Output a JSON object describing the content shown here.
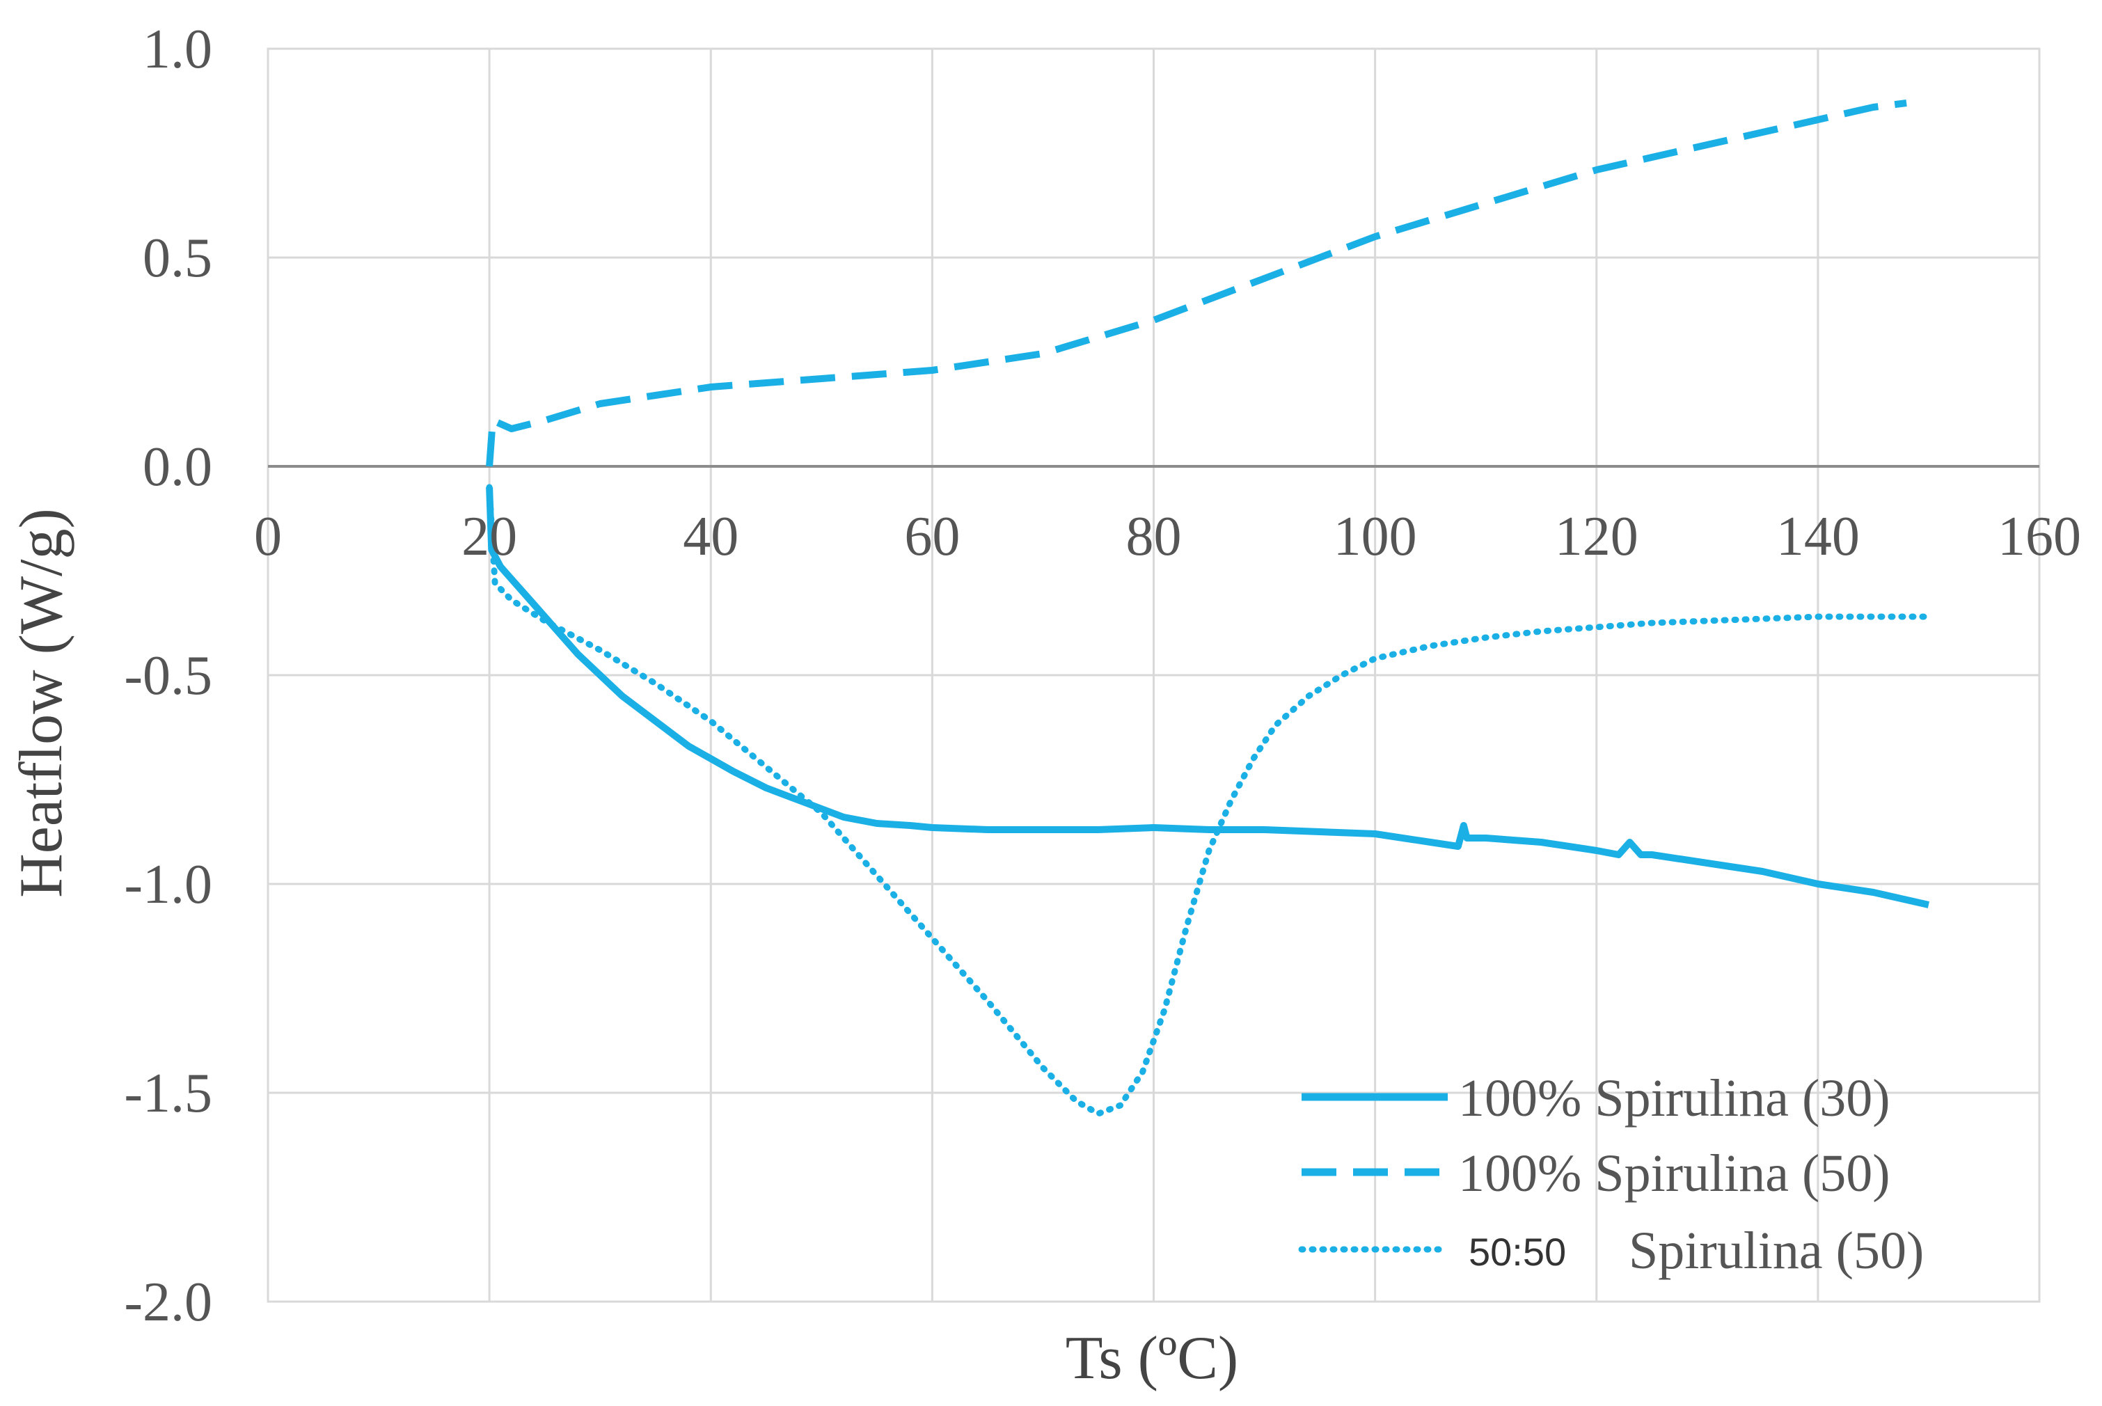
{
  "chart_data": {
    "type": "line",
    "title": "",
    "xlabel": "Ts (ºC)",
    "ylabel": "Heatflow (W/g)",
    "xlim": [
      0,
      160
    ],
    "ylim": [
      -2.0,
      1.0
    ],
    "grid": true,
    "x_ticks": [
      0,
      20,
      40,
      60,
      80,
      100,
      120,
      140,
      160
    ],
    "x_tick_labels": [
      "0",
      "20",
      "40",
      "60",
      "80",
      "100",
      "120",
      "140",
      "160"
    ],
    "y_ticks": [
      1.0,
      0.5,
      0.0,
      -0.5,
      -1.0,
      -1.5,
      -2.0
    ],
    "y_tick_labels": [
      "1.0",
      "0.5",
      "0.0",
      "-0.5",
      "-1.0",
      "-1.5",
      "-2.0"
    ],
    "legend_position": "bottom-right",
    "color": "#1ab0e6",
    "series": [
      {
        "name": "100% Spirulina (30)",
        "style": "solid",
        "x": [
          20,
          20.2,
          21,
          22,
          24,
          26,
          28,
          30,
          32,
          35,
          38,
          40,
          42,
          45,
          48,
          50,
          52,
          55,
          58,
          60,
          65,
          70,
          75,
          80,
          85,
          90,
          95,
          100,
          105,
          107.5,
          108,
          108.3,
          110,
          115,
          120,
          122,
          123,
          124,
          125,
          130,
          135,
          140,
          145,
          150
        ],
        "y": [
          -0.05,
          -0.2,
          -0.24,
          -0.27,
          -0.33,
          -0.39,
          -0.45,
          -0.5,
          -0.55,
          -0.61,
          -0.67,
          -0.7,
          -0.73,
          -0.77,
          -0.8,
          -0.82,
          -0.84,
          -0.855,
          -0.86,
          -0.865,
          -0.87,
          -0.87,
          -0.87,
          -0.865,
          -0.87,
          -0.87,
          -0.875,
          -0.88,
          -0.9,
          -0.91,
          -0.86,
          -0.89,
          -0.89,
          -0.9,
          -0.92,
          -0.93,
          -0.9,
          -0.93,
          -0.93,
          -0.95,
          -0.97,
          -1.0,
          -1.02,
          -1.05
        ]
      },
      {
        "name": "100% Spirulina (50)",
        "style": "dashed",
        "x": [
          20,
          20.3,
          22,
          25,
          30,
          35,
          40,
          45,
          50,
          55,
          60,
          65,
          70,
          75,
          80,
          85,
          90,
          95,
          100,
          105,
          110,
          115,
          120,
          125,
          130,
          135,
          140,
          145,
          148
        ],
        "y": [
          0.0,
          0.11,
          0.09,
          0.11,
          0.15,
          0.17,
          0.19,
          0.2,
          0.21,
          0.22,
          0.23,
          0.25,
          0.27,
          0.31,
          0.35,
          0.4,
          0.45,
          0.5,
          0.55,
          0.59,
          0.63,
          0.67,
          0.71,
          0.74,
          0.77,
          0.8,
          0.83,
          0.86,
          0.87
        ]
      },
      {
        "name": "50:50 Spirulina (50)",
        "style": "dotted",
        "x": [
          20,
          20.5,
          22,
          25,
          30,
          35,
          40,
          45,
          50,
          55,
          60,
          65,
          70,
          73,
          75,
          77,
          79,
          81,
          83,
          85,
          87,
          89,
          91,
          94,
          97,
          100,
          105,
          110,
          115,
          120,
          125,
          130,
          135,
          140,
          145,
          150
        ],
        "y": [
          -0.05,
          -0.28,
          -0.32,
          -0.37,
          -0.44,
          -0.52,
          -0.61,
          -0.72,
          -0.83,
          -0.98,
          -1.13,
          -1.28,
          -1.44,
          -1.52,
          -1.55,
          -1.53,
          -1.45,
          -1.3,
          -1.1,
          -0.92,
          -0.8,
          -0.7,
          -0.62,
          -0.55,
          -0.5,
          -0.46,
          -0.43,
          -0.41,
          -0.395,
          -0.385,
          -0.375,
          -0.37,
          -0.365,
          -0.36,
          -0.36,
          -0.36
        ]
      }
    ],
    "legend": [
      {
        "label": "100% Spirulina (30)",
        "style": "solid"
      },
      {
        "label": "100% Spirulina (50)",
        "style": "dashed"
      },
      {
        "prefix": "50:50",
        "label": "Spirulina (50)",
        "style": "dotted"
      }
    ]
  }
}
